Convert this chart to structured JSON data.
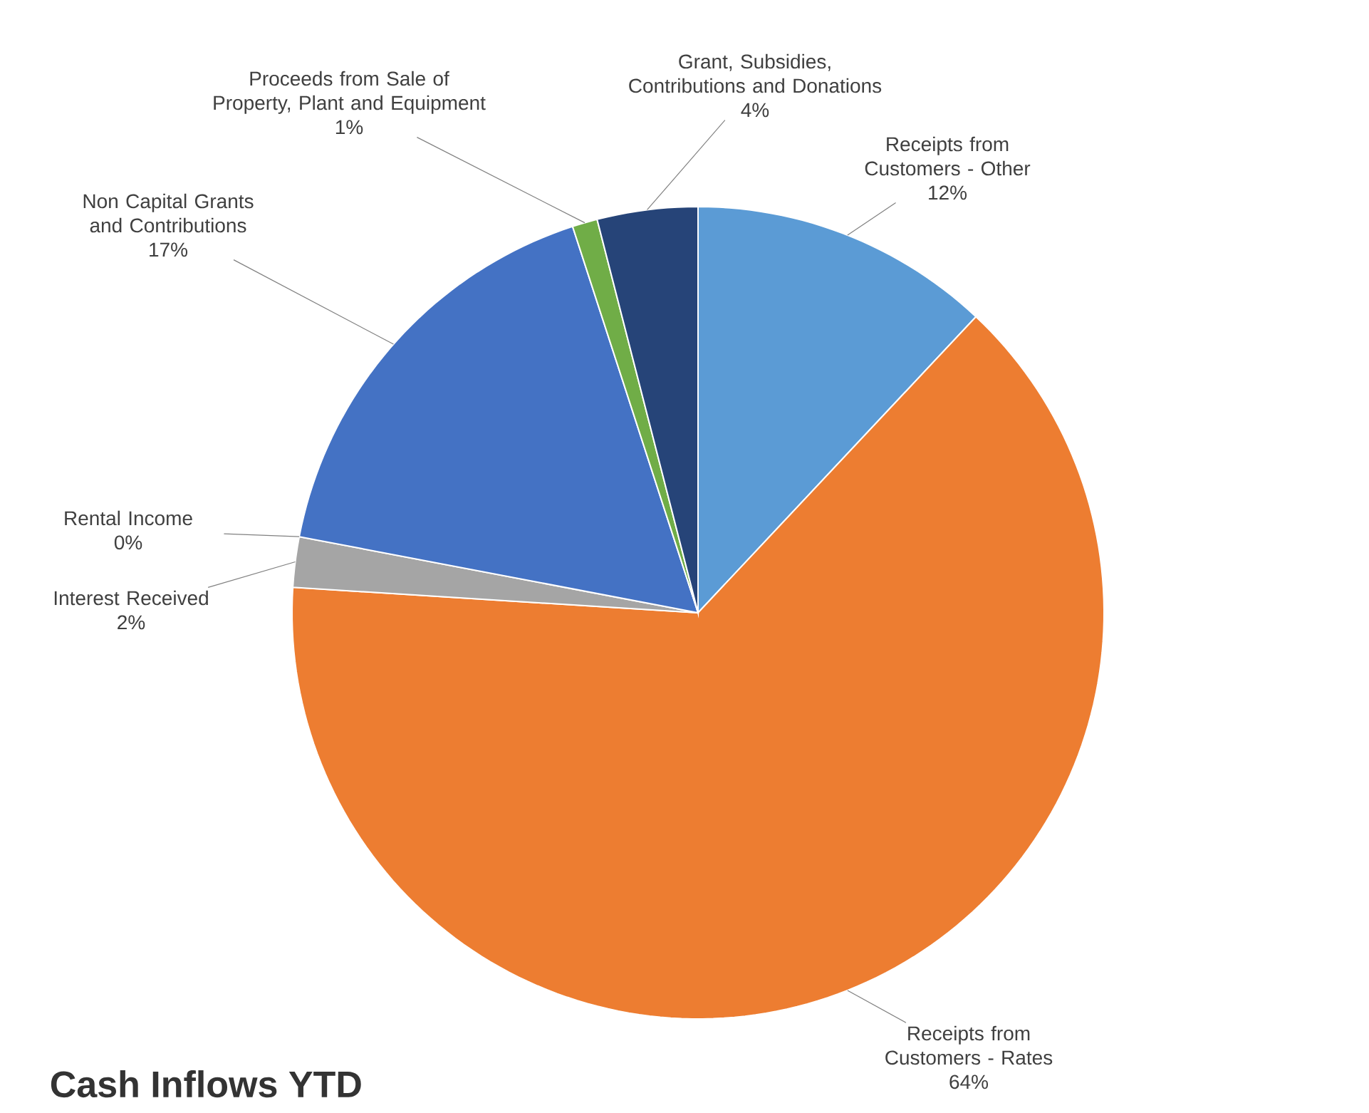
{
  "chart_data": {
    "type": "pie",
    "title": "Cash Inflows YTD",
    "categories": [
      "Receipts from Customers - Other",
      "Receipts from Customers - Rates",
      "Interest Received",
      "Rental Income",
      "Non Capital Grants and Contributions",
      "Proceeds from Sale of Property, Plant and Equipment",
      "Grant, Subsidies, Contributions and Donations"
    ],
    "values": [
      12,
      64,
      2,
      0,
      17,
      1,
      4
    ],
    "value_labels": [
      "12%",
      "64%",
      "2%",
      "0%",
      "17%",
      "1%",
      "4%"
    ],
    "colors": [
      "#5b9bd5",
      "#ed7d31",
      "#a5a5a5",
      "#ffc000",
      "#4472c4",
      "#70ad47",
      "#264478"
    ]
  }
}
